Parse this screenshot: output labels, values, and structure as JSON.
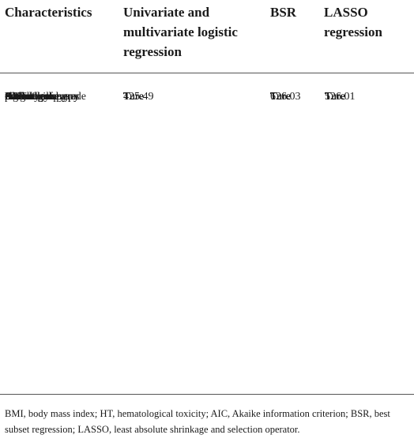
{
  "table": {
    "headers": {
      "characteristics": "Characteristics",
      "univariate": "Univariate and multivariate logistic regression",
      "bsr": "BSR",
      "lasso": "LASSO regression"
    },
    "rows": [
      {
        "characteristic": "Age",
        "univariate": "",
        "bsr": "",
        "lasso": ""
      },
      {
        "characteristic": "BMI",
        "univariate": "",
        "bsr": "Ture",
        "lasso": ""
      },
      {
        "characteristic": "Chronic diseases",
        "univariate": "",
        "bsr": "Ture",
        "lasso": "Ture"
      },
      {
        "characteristic": "Pathology",
        "univariate": "",
        "bsr": "",
        "lasso": ""
      },
      {
        "characteristic": "Histological grade",
        "univariate": "Ture",
        "bsr": "Ture",
        "lasso": "Ture"
      },
      {
        "characteristic": "Surgery",
        "univariate": "",
        "bsr": "",
        "lasso": ""
      },
      {
        "characteristic": "Pre-radiotherapy",
        "univariate": "Ture",
        "bsr": "Ture",
        "lasso": "Ture"
      },
      {
        "characteristic": "chemotherapy",
        "univariate": "",
        "bsr": "",
        "lasso": ""
      },
      {
        "characteristic": "Pre-radiotherapy",
        "univariate": "Ture",
        "bsr": "Ture",
        "lasso": "Ture"
      },
      {
        "characteristic": "HT",
        "univariate": "",
        "bsr": "",
        "lasso": ""
      },
      {
        "characteristic": "Radiotherapy",
        "univariate": "Ture",
        "bsr": "Ture",
        "lasso": "Ture"
      },
      {
        "characteristic": "AIC values",
        "univariate": "125.49",
        "bsr": "126.03",
        "lasso": "126.01"
      },
      {
        "characteristic": "Number of",
        "univariate": "4",
        "bsr": "6",
        "lasso": "5"
      },
      {
        "characteristic": "predictors",
        "univariate": "",
        "bsr": "",
        "lasso": ""
      }
    ]
  },
  "footnote": "BMI, body mass index; HT, hematological toxicity; AIC, Akaike information criterion; BSR, best subset regression; LASSO, least absolute shrinkage and selection operator."
}
